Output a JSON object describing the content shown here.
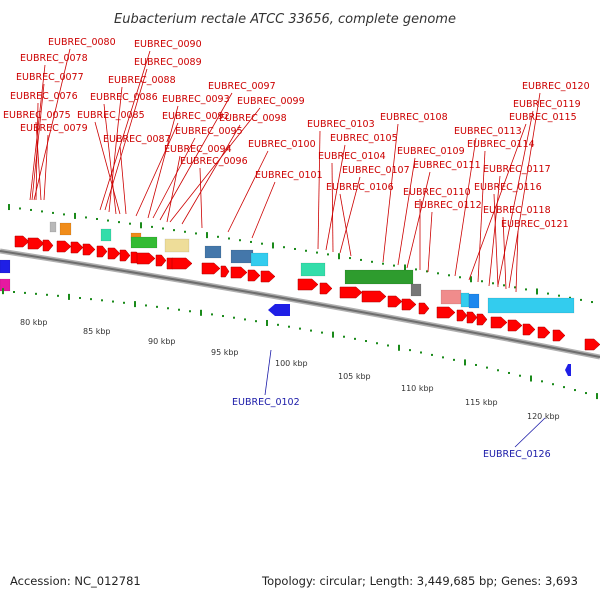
{
  "title": "Eubacterium rectale ATCC 33656, complete genome",
  "footer": {
    "accession": "Accession: NC_012781",
    "summary": "Topology: circular; Length: 3,449,685 bp; Genes: 3,693"
  },
  "colors": {
    "backbone": "#888888",
    "forward_gene": "#ff0000",
    "reverse_gene": "#1f1fe6",
    "label_forward": "#cc0000",
    "label_reverse": "#1a1aa8"
  },
  "scale_labels": [
    "80 kbp",
    "85 kbp",
    "90 kbp",
    "95 kbp",
    "100 kbp",
    "105 kbp",
    "110 kbp",
    "115 kbp",
    "120 kbp"
  ],
  "forward_labels": [
    "EUBREC_0080",
    "EUBREC_0078",
    "EUBREC_0077",
    "EUBREC_0076",
    "EUBREC_0075",
    "EUBREC_0079",
    "EUBREC_0090",
    "EUBREC_0089",
    "EUBREC_0088",
    "EUBREC_0086",
    "EUBREC_0085",
    "EUBREC_0087",
    "EUBREC_0097",
    "EUBREC_0099",
    "EUBREC_0093",
    "EUBREC_0092",
    "EUBREC_0098",
    "EUBREC_0095",
    "EUBREC_0094",
    "EUBREC_0096",
    "EUBREC_0100",
    "EUBREC_0101",
    "EUBREC_0103",
    "EUBREC_0105",
    "EUBREC_0104",
    "EUBREC_0107",
    "EUBREC_0106",
    "EUBREC_0108",
    "EUBREC_0109",
    "EUBREC_0111",
    "EUBREC_0110",
    "EUBREC_0112",
    "EUBREC_0120",
    "EUBREC_0119",
    "EUBREC_0115",
    "EUBREC_0113",
    "EUBREC_0114",
    "EUBREC_0117",
    "EUBREC_0116",
    "EUBREC_0118",
    "EUBREC_0121"
  ],
  "reverse_labels": [
    "EUBREC_0102",
    "EUBREC_0126"
  ]
}
